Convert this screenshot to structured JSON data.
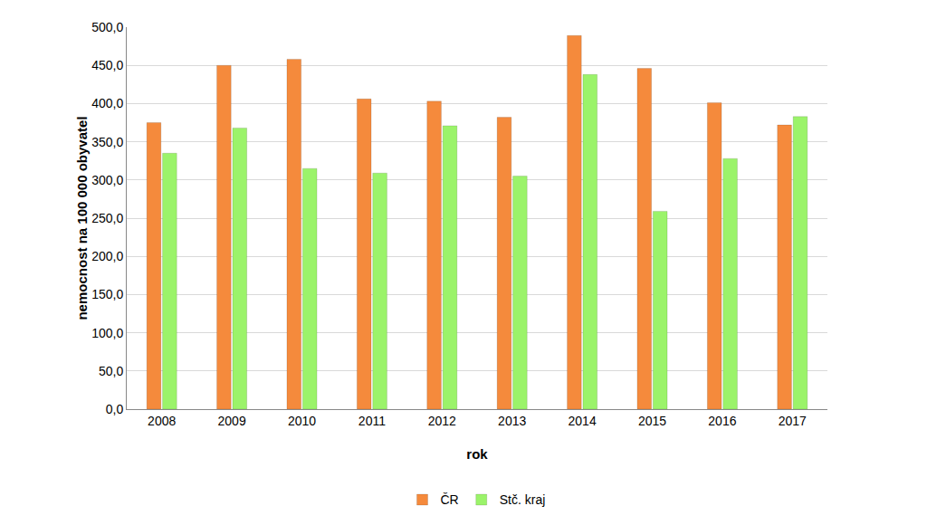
{
  "chart_data": {
    "type": "bar",
    "x_label": "rok",
    "y_label": "nemocnost na 100 000 obyvatel",
    "categories": [
      "2008",
      "2009",
      "2010",
      "2011",
      "2012",
      "2013",
      "2014",
      "2015",
      "2016",
      "2017"
    ],
    "series": [
      {
        "name": "ČR",
        "color": "#f58a3c",
        "values": [
          375,
          450,
          458,
          406,
          403,
          382,
          489,
          446,
          401,
          372
        ]
      },
      {
        "name": "Stč. kraj",
        "color": "#9bf36a",
        "values": [
          335,
          368,
          315,
          309,
          371,
          305,
          438,
          259,
          328,
          383
        ]
      }
    ],
    "ylim": [
      0,
      500
    ],
    "yticks": [
      {
        "value": 0,
        "label": "0,0"
      },
      {
        "value": 50,
        "label": "50,0"
      },
      {
        "value": 100,
        "label": "100,0"
      },
      {
        "value": 150,
        "label": "150,0"
      },
      {
        "value": 200,
        "label": "200,0"
      },
      {
        "value": 250,
        "label": "250,0"
      },
      {
        "value": 300,
        "label": "300,0"
      },
      {
        "value": 350,
        "label": "350,0"
      },
      {
        "value": 400,
        "label": "400,0"
      },
      {
        "value": 450,
        "label": "450,0"
      },
      {
        "value": 500,
        "label": "500,0"
      }
    ],
    "grid": true,
    "legend": "bottom"
  }
}
